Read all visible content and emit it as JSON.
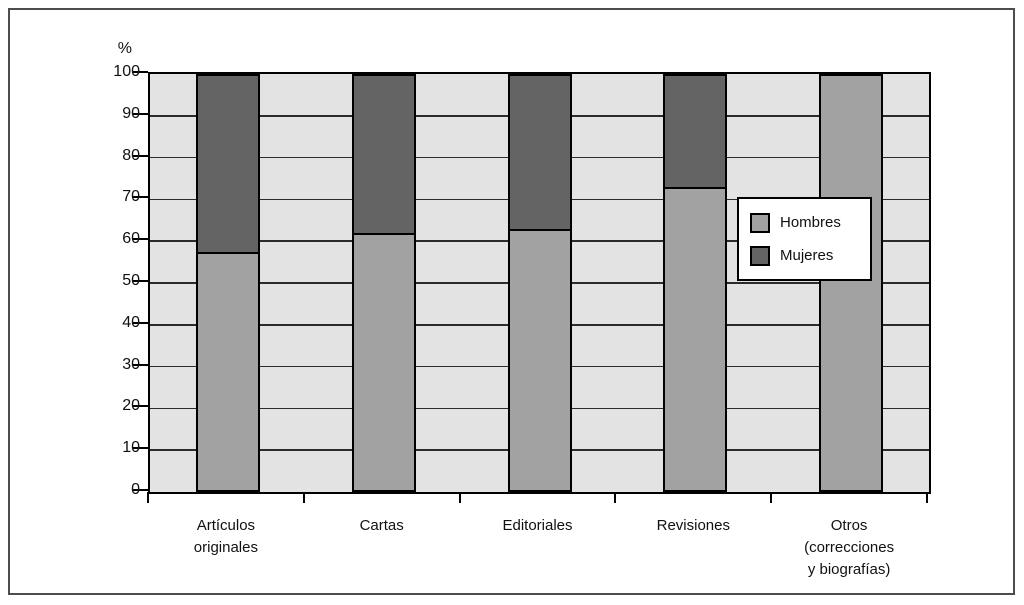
{
  "figure": {
    "y_axis_unit": "%"
  },
  "legend": {
    "items": [
      {
        "label": "Hombres",
        "color": "#a2a2a2"
      },
      {
        "label": "Mujeres",
        "color": "#646464"
      }
    ]
  },
  "chart_data": {
    "type": "bar",
    "stacked": true,
    "orientation": "vertical",
    "title": "",
    "xlabel": "",
    "ylabel": "%",
    "categories": [
      "Artículos originales",
      "Cartas",
      "Editoriales",
      "Revisiones",
      "Otros (correcciones y biografías)"
    ],
    "category_label_lines": [
      "Artículos\noriginales",
      "Cartas",
      "Editoriales",
      "Revisiones",
      "Otros\n(correcciones\ny biografías)"
    ],
    "series": [
      {
        "name": "Hombres",
        "color": "#a2a2a2",
        "values": [
          57.5,
          62,
          63,
          73,
          100
        ]
      },
      {
        "name": "Mujeres",
        "color": "#646464",
        "values": [
          42.5,
          38,
          37,
          27,
          0
        ]
      }
    ],
    "ylim": [
      0,
      100
    ],
    "yticks": [
      0,
      10,
      20,
      30,
      40,
      50,
      60,
      70,
      80,
      90,
      100
    ],
    "grid": true,
    "gridline_color": "#2b2b2b",
    "plot_background": "#e3e3e3",
    "legend_position": "right-middle"
  }
}
